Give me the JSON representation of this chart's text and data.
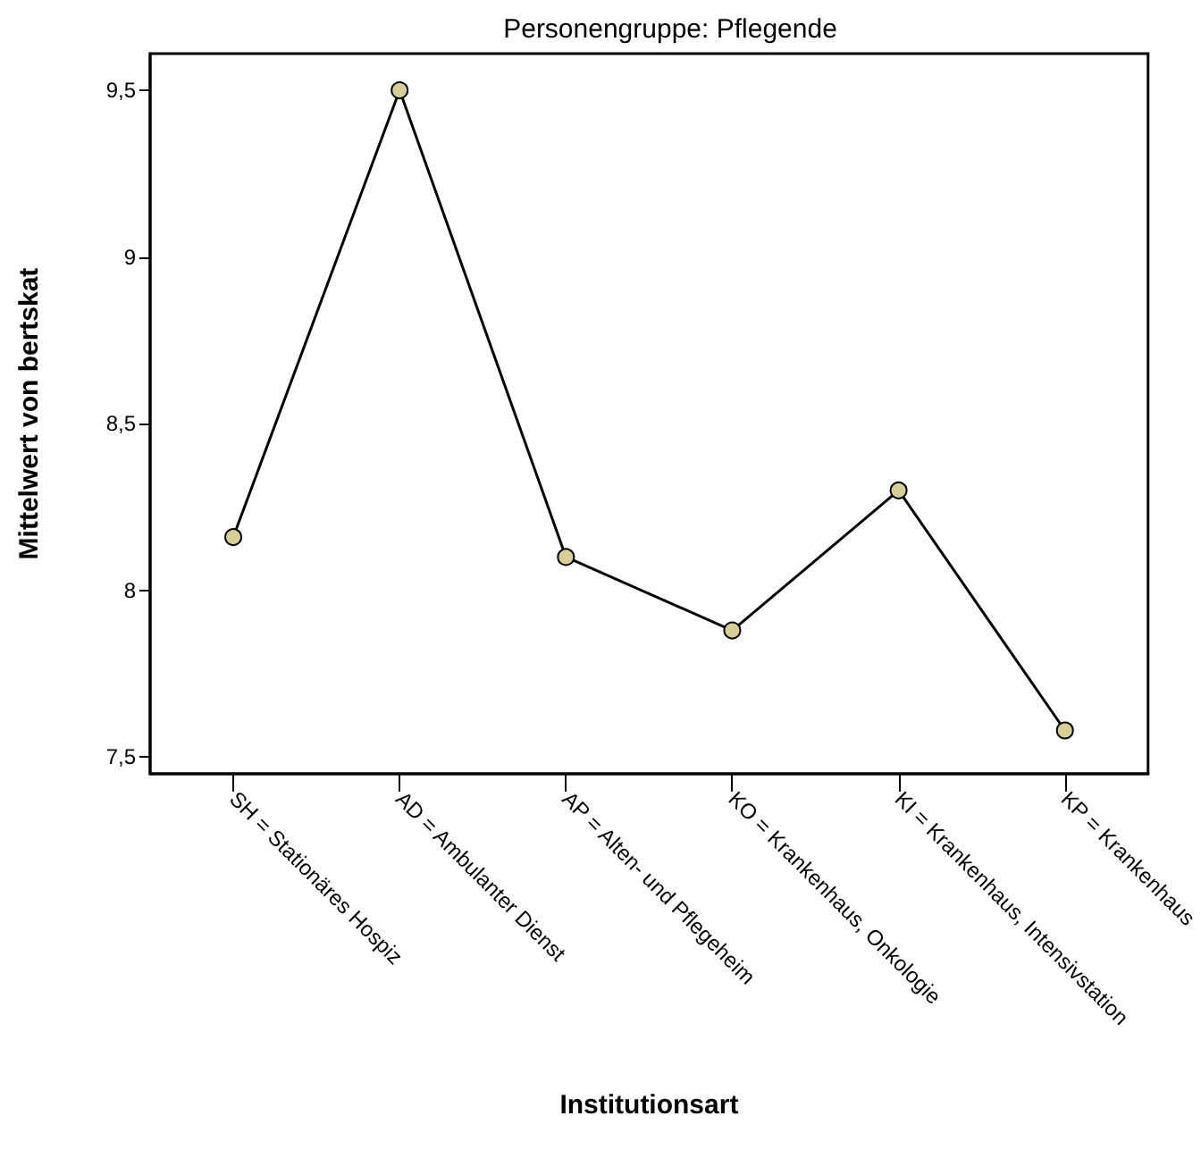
{
  "chart_data": {
    "type": "line",
    "title": "Personengruppe: Pflegende",
    "xlabel": "Institutionsart",
    "ylabel": "Mittelwert von bertskat",
    "categories": [
      "SH = Stationäres Hospiz",
      "AD = Ambulanter Dienst",
      "AP = Alten- und Pflegeheim",
      "KO = Krankenhaus, Onkologie",
      "KI = Krankenhaus, Intensivstation",
      "KP = Krankenhaus"
    ],
    "series": [
      {
        "color": "#d6cd98",
        "values": [
          8.16,
          9.5,
          8.1,
          7.88,
          8.3,
          7.58
        ]
      }
    ],
    "ylim": [
      7.45,
      9.61
    ],
    "yticks": [
      {
        "value": 7.5,
        "label": "7,5"
      },
      8,
      {
        "value": 8.5,
        "label": "8,5"
      },
      9,
      {
        "value": 9.5,
        "label": "9,5"
      }
    ],
    "grid": false,
    "marker": "circle",
    "line_style": "solid"
  }
}
